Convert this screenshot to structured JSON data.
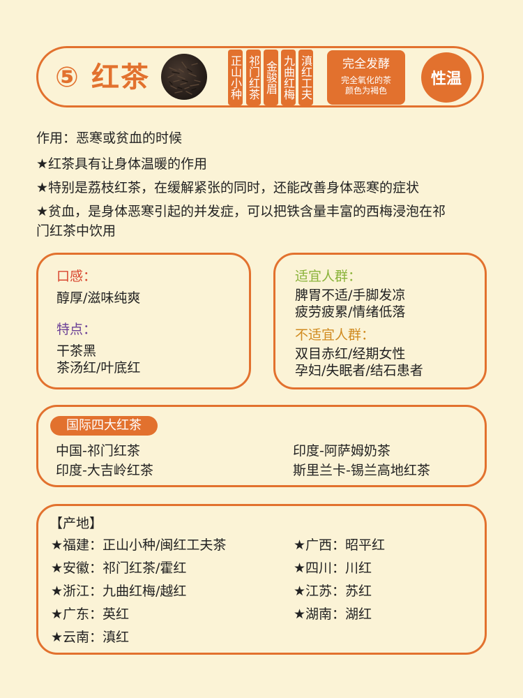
{
  "header": {
    "number": "⑤",
    "title": "红茶",
    "varieties": [
      "正山小种",
      "祁门红茶",
      "金骏眉",
      "九曲红梅",
      "滇红工夫"
    ],
    "fermentation": "完全发酵",
    "fermentation_note_1": "完全氧化的茶",
    "fermentation_note_2": "颜色为褐色",
    "nature": "性温"
  },
  "effect": {
    "title": "作用：恶寒或贫血的时候",
    "lines": [
      "★红茶具有让身体温暖的作用",
      "★特别是荔枝红茶，在缓解紧张的同时，还能改善身体恶寒的症状",
      "★贫血，是身体恶寒引起的并发症，可以把铁含量丰富的西梅浸泡在祁",
      "门红茶中饮用"
    ]
  },
  "taste": {
    "label": "口感：",
    "value": "醇厚/滋味纯爽",
    "feature_label": "特点：",
    "features": [
      "干茶黑",
      "茶汤红/叶底红"
    ]
  },
  "crowd": {
    "suitable_label": "适宜人群：",
    "suitable": [
      "脾胃不适/手脚发凉",
      "疲劳疲累/情绪低落"
    ],
    "unsuitable_label": "不适宜人群：",
    "unsuitable": [
      "双目赤红/经期女性",
      "孕妇/失眠者/结石患者"
    ]
  },
  "famous": {
    "label": "国际四大红茶",
    "items": [
      "中国-祁门红茶",
      "印度-阿萨姆奶茶",
      "印度-大吉岭红茶",
      "斯里兰卡-锡兰高地红茶"
    ]
  },
  "origin": {
    "label": "【产地】",
    "left": [
      "★福建：正山小种/闽红工夫茶",
      "★安徽：祁门红茶/霍红",
      "★浙江：九曲红梅/越红",
      "★广东：英红",
      "★云南：滇红"
    ],
    "right": [
      "★广西：昭平红",
      "★四川：川红",
      "★江苏：苏红",
      "★湖南：湖红"
    ]
  },
  "colors": {
    "accent": "#e2712e",
    "background": "#fbf3d6"
  }
}
